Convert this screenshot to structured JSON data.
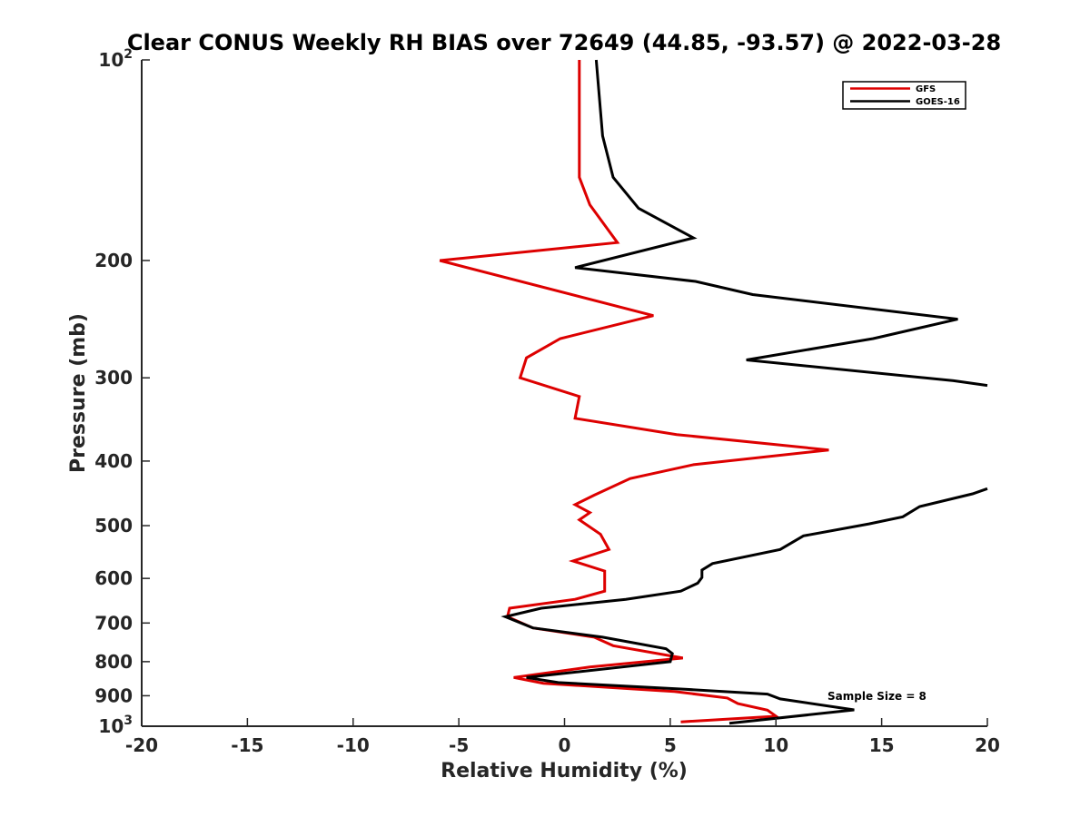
{
  "chart_data": {
    "type": "line",
    "title": "Clear CONUS Weekly RH BIAS over 72649 (44.85, -93.57) @ 2022-03-28",
    "xlabel": "Relative Humidity (%)",
    "ylabel": "Pressure (mb)",
    "xlim": [
      -20,
      20
    ],
    "ylim": [
      100,
      1000
    ],
    "y_scale": "log",
    "y_reversed": true,
    "x_ticks": [
      "-20",
      "-15",
      "-10",
      "-5",
      "0",
      "5",
      "10",
      "15",
      "20"
    ],
    "y_ticks": [
      {
        "value": 100,
        "label": "10",
        "sup": "2"
      },
      {
        "value": 200,
        "label": "200",
        "sup": ""
      },
      {
        "value": 300,
        "label": "300",
        "sup": ""
      },
      {
        "value": 400,
        "label": "400",
        "sup": ""
      },
      {
        "value": 500,
        "label": "500",
        "sup": ""
      },
      {
        "value": 600,
        "label": "600",
        "sup": ""
      },
      {
        "value": 700,
        "label": "700",
        "sup": ""
      },
      {
        "value": 800,
        "label": "800",
        "sup": ""
      },
      {
        "value": 900,
        "label": "900",
        "sup": ""
      },
      {
        "value": 1000,
        "label": "10",
        "sup": "3"
      }
    ],
    "grid": false,
    "legend": "top-right",
    "annotation": "Sample Size = 8",
    "series": [
      {
        "name": "GFS",
        "color": "#dd0000",
        "points": [
          [
            0.7,
            100
          ],
          [
            0.7,
            150
          ],
          [
            1.2,
            165
          ],
          [
            2.5,
            188
          ],
          [
            -5.9,
            200
          ],
          [
            4.2,
            242
          ],
          [
            -0.2,
            262
          ],
          [
            -1.8,
            280
          ],
          [
            -2.1,
            300
          ],
          [
            0.7,
            320
          ],
          [
            0.5,
            345
          ],
          [
            5.3,
            365
          ],
          [
            12.5,
            385
          ],
          [
            6.1,
            405
          ],
          [
            3.1,
            425
          ],
          [
            1.4,
            450
          ],
          [
            0.5,
            465
          ],
          [
            1.2,
            478
          ],
          [
            0.7,
            490
          ],
          [
            1.7,
            515
          ],
          [
            2.1,
            543
          ],
          [
            0.4,
            565
          ],
          [
            1.9,
            585
          ],
          [
            1.9,
            627
          ],
          [
            0.5,
            645
          ],
          [
            -2.6,
            665
          ],
          [
            -2.7,
            685
          ],
          [
            -1.5,
            712
          ],
          [
            1.4,
            735
          ],
          [
            2.3,
            757
          ],
          [
            5.6,
            790
          ],
          [
            1.2,
            815
          ],
          [
            -2.4,
            845
          ],
          [
            -1.0,
            862
          ],
          [
            5.2,
            887
          ],
          [
            7.7,
            907
          ],
          [
            8.2,
            925
          ],
          [
            9.6,
            946
          ],
          [
            10.0,
            966
          ],
          [
            5.5,
            985
          ]
        ]
      },
      {
        "name": "GOES-16",
        "color": "#000000",
        "points": [
          [
            1.5,
            100
          ],
          [
            1.8,
            130
          ],
          [
            2.3,
            150
          ],
          [
            3.5,
            167
          ],
          [
            6.1,
            185
          ],
          [
            0.5,
            205
          ],
          [
            6.2,
            215
          ],
          [
            8.9,
            225
          ],
          [
            18.6,
            245
          ],
          [
            14.6,
            262
          ],
          [
            8.6,
            282
          ],
          [
            18.4,
            303
          ],
          [
            20,
            308
          ],
          null,
          [
            20,
            440
          ],
          [
            19.3,
            448
          ],
          [
            16.8,
            468
          ],
          [
            16.0,
            485
          ],
          [
            14.4,
            497
          ],
          [
            11.3,
            518
          ],
          [
            10.2,
            543
          ],
          [
            7.0,
            570
          ],
          [
            6.5,
            583
          ],
          [
            6.5,
            598
          ],
          [
            6.3,
            610
          ],
          [
            5.5,
            627
          ],
          [
            2.9,
            645
          ],
          [
            -1.1,
            665
          ],
          [
            -2.8,
            685
          ],
          [
            -1.5,
            712
          ],
          [
            1.8,
            735
          ],
          [
            4.8,
            765
          ],
          [
            5.1,
            778
          ],
          [
            5.0,
            800
          ],
          [
            -1.8,
            845
          ],
          [
            -0.3,
            860
          ],
          [
            5.7,
            880
          ],
          [
            9.6,
            895
          ],
          [
            10.2,
            910
          ],
          [
            13.7,
            945
          ],
          [
            7.8,
            990
          ]
        ]
      }
    ]
  }
}
